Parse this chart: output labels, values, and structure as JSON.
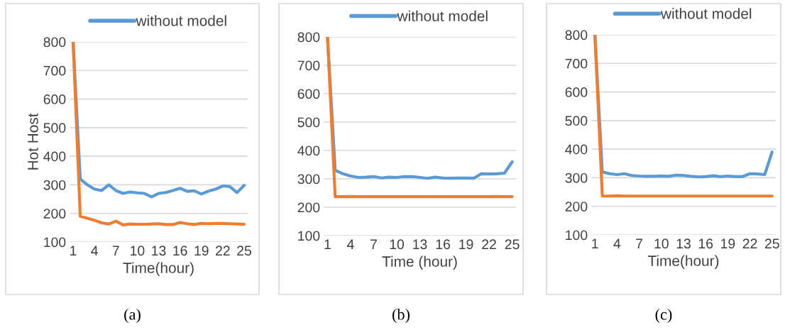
{
  "chart_data": [
    {
      "type": "line",
      "xlabel": "Time(hour)",
      "ylabel": "Hot Host",
      "annotations": [
        "(a)"
      ],
      "categories": [
        "1",
        null,
        null,
        "4",
        null,
        null,
        "7",
        null,
        null,
        "10",
        null,
        null,
        "13",
        null,
        null,
        "16",
        null,
        null,
        "19",
        null,
        null,
        "22",
        null,
        null,
        "25"
      ],
      "ylim": [
        100,
        800
      ],
      "yticks": [
        100,
        200,
        300,
        400,
        500,
        600,
        700,
        800
      ],
      "grid": "y",
      "legend": "top",
      "marker": "none",
      "line_style": "solid",
      "series": [
        {
          "name": "without model",
          "color": "#5b9bd5",
          "values": [
            800,
            320,
            300,
            285,
            280,
            300,
            280,
            270,
            275,
            272,
            270,
            258,
            270,
            273,
            280,
            288,
            277,
            279,
            268,
            278,
            285,
            296,
            294,
            273,
            298
          ]
        },
        {
          "color": "#ed7d31",
          "values": [
            800,
            190,
            183,
            176,
            167,
            163,
            173,
            160,
            163,
            162,
            162,
            163,
            164,
            161,
            161,
            168,
            164,
            161,
            165,
            164,
            165,
            165,
            164,
            163,
            162
          ]
        }
      ]
    },
    {
      "type": "line",
      "xlabel": "Time (hour)",
      "annotations": [
        "(b)"
      ],
      "categories": [
        "1",
        null,
        null,
        "4",
        null,
        null,
        "7",
        null,
        null,
        "10",
        null,
        null,
        "13",
        null,
        null,
        "16",
        null,
        null,
        "19",
        null,
        null,
        "22",
        null,
        null,
        "25"
      ],
      "ylim": [
        100,
        800
      ],
      "yticks": [
        100,
        200,
        300,
        400,
        500,
        600,
        700,
        800
      ],
      "grid": "y",
      "legend": "top",
      "marker": "none",
      "line_style": "solid",
      "series": [
        {
          "name": "without model",
          "color": "#5b9bd5",
          "values": [
            800,
            330,
            318,
            310,
            305,
            306,
            308,
            303,
            306,
            305,
            308,
            308,
            305,
            302,
            306,
            303,
            302,
            303,
            303,
            302,
            318,
            317,
            318,
            320,
            360
          ]
        },
        {
          "color": "#ed7d31",
          "values": [
            800,
            237,
            237,
            238,
            237,
            237,
            237,
            237,
            237,
            237,
            237,
            237,
            237,
            237,
            237,
            237,
            237,
            237,
            237,
            237,
            237,
            237,
            238,
            237,
            237
          ]
        }
      ]
    },
    {
      "type": "line",
      "xlabel": "Time(hour)",
      "annotations": [
        "(c)"
      ],
      "categories": [
        "1",
        null,
        null,
        "4",
        null,
        null,
        "7",
        null,
        null,
        "10",
        null,
        null,
        "13",
        null,
        null,
        "16",
        null,
        null,
        "19",
        null,
        null,
        "22",
        null,
        null,
        "25"
      ],
      "ylim": [
        100,
        800
      ],
      "yticks": [
        100,
        200,
        300,
        400,
        500,
        600,
        700,
        800
      ],
      "grid": "y",
      "legend": "top",
      "marker": "none",
      "line_style": "solid",
      "series": [
        {
          "name": "without model",
          "color": "#5b9bd5",
          "values": [
            800,
            320,
            314,
            311,
            314,
            308,
            306,
            305,
            305,
            306,
            305,
            309,
            308,
            305,
            303,
            304,
            307,
            304,
            306,
            304,
            304,
            314,
            313,
            311,
            390
          ]
        },
        {
          "color": "#ed7d31",
          "values": [
            800,
            236,
            236,
            237,
            236,
            236,
            236,
            236,
            236,
            236,
            236,
            236,
            236,
            236,
            236,
            236,
            236,
            236,
            236,
            236,
            236,
            236,
            236,
            236,
            236
          ]
        }
      ]
    }
  ]
}
